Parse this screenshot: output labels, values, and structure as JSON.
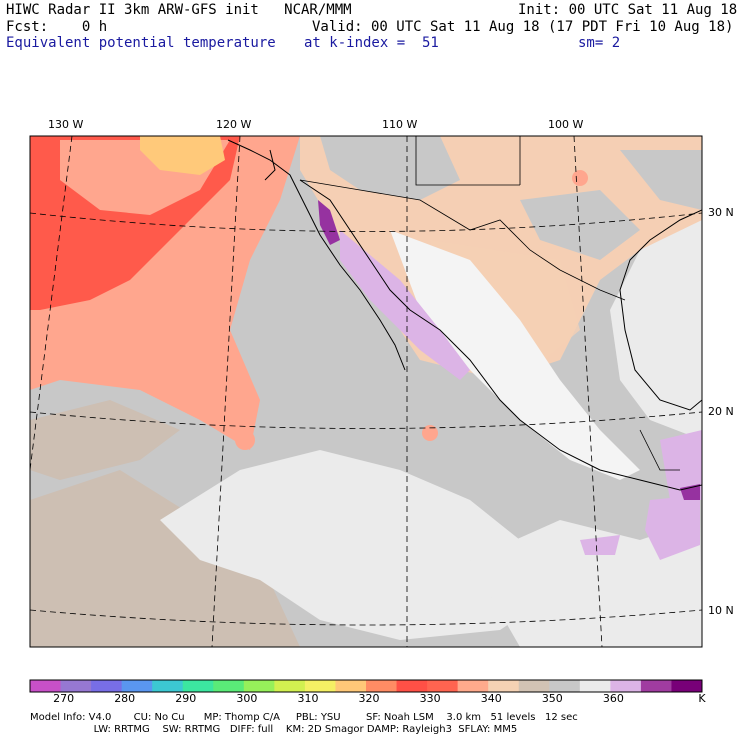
{
  "header": {
    "title": "HIWC Radar II 3km ARW-GFS init   NCAR/MMM",
    "init": "Init: 00 UTC Sat 11 Aug 18",
    "fcst": "Fcst:    0 h",
    "valid": "Valid: 00 UTC Sat 11 Aug 18 (17 PDT Fri 10 Aug 18)",
    "field": "Equivalent potential temperature",
    "level": "at k-index =  51",
    "smooth": "sm= 2"
  },
  "map": {
    "lon_labels": [
      "130 W",
      "120 W",
      "110 W",
      "100 W"
    ],
    "lat_labels": [
      "30 N",
      "20 N",
      "10 N"
    ],
    "colors": {
      "ocean_low": "#cdbfb3",
      "ocean_gray": "#c8c8c8",
      "ocean_light": "#ebebeb",
      "warm_330": "#ff5a4b",
      "warm_340": "#ffa68e",
      "warm_345": "#f5cfb4",
      "warm_320": "#ffc97a",
      "purple_365": "#dcb4e6",
      "purple_370": "#9632a0"
    }
  },
  "colorbar": {
    "labels": [
      "270",
      "280",
      "290",
      "300",
      "310",
      "320",
      "330",
      "340",
      "350",
      "360"
    ],
    "unit": "K",
    "colors": [
      "#c850c8",
      "#9678d2",
      "#786ee6",
      "#5a96f0",
      "#3cc8d2",
      "#3ce6a0",
      "#5aeb78",
      "#96f05a",
      "#d2f050",
      "#f5f064",
      "#ffc878",
      "#ff8c64",
      "#ff5046",
      "#ff6450",
      "#ffaa8c",
      "#f5d2b4",
      "#d2c3b4",
      "#c8c8c8",
      "#ebebeb",
      "#dcb4e6",
      "#a03ca0",
      "#780078"
    ]
  },
  "footer": {
    "line1": "Model Info: V4.0       CU: No Cu      MP: Thomp C/A     PBL: YSU        SF: Noah LSM    3.0 km   51 levels   12 sec",
    "line2": "                    LW: RRTMG    SW: RRTMG   DIFF: full    KM: 2D Smagor DAMP: Rayleigh3  SFLAY: MM5"
  }
}
